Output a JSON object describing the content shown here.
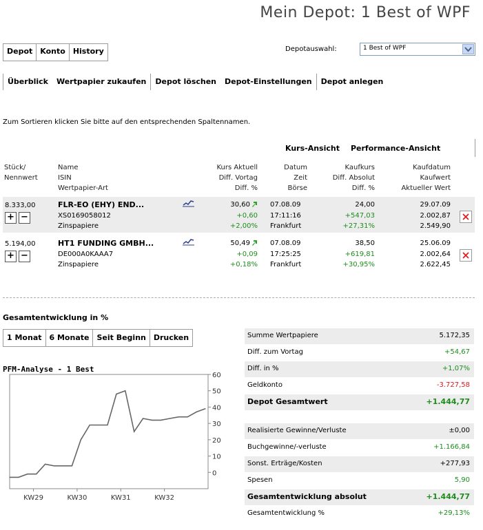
{
  "page_title": "Mein Depot: 1 Best of WPF",
  "tabs": [
    "Depot",
    "Konto",
    "History"
  ],
  "depot_select": {
    "label": "Depotauswahl:",
    "value": "1 Best of WPF"
  },
  "subnav": [
    "Überblick",
    "Wertpapier zukaufen",
    "Depot löschen",
    "Depot-Einstellungen",
    "Depot anlegen"
  ],
  "sort_hint": "Zum Sortieren klicken Sie bitte auf den entsprechenden Spaltennamen.",
  "view_links": [
    "Kurs-Ansicht",
    "Performance-Ansicht"
  ],
  "table": {
    "headers": {
      "stueck": [
        "Stück/",
        "Nennwert"
      ],
      "name": [
        "Name",
        "ISIN",
        "Wertpapier-Art"
      ],
      "kurs": [
        "Kurs Aktuell",
        "Diff. Vortag",
        "Diff. %"
      ],
      "datum": [
        "Datum",
        "Zeit",
        "Börse"
      ],
      "kaufkurs": [
        "Kaufkurs",
        "Diff. Absolut",
        "Diff. %"
      ],
      "kaufdatum": [
        "Kaufdatum",
        "Kaufwert",
        "Aktueller Wert"
      ]
    },
    "rows": [
      {
        "qty": "8.333,00",
        "name": "FLR-EO (EHY) END...",
        "isin": "XS0169058012",
        "type": "Zinspapiere",
        "kurs": "30,60",
        "diff_vortag": "+0,60",
        "diff_pct": "+2,00%",
        "datum": "07.08.09",
        "zeit": "17:11:16",
        "boerse": "Frankfurt",
        "kaufkurs": "24,00",
        "diff_abs": "+547,03",
        "diff_pct2": "+27,31%",
        "kaufdatum": "29.07.09",
        "kaufwert": "2.002,87",
        "aktueller_wert": "2.549,90"
      },
      {
        "qty": "5.194,00",
        "name": "HT1 FUNDING GMBH...",
        "isin": "DE000A0KAAA7",
        "type": "Zinspapiere",
        "kurs": "50,49",
        "diff_vortag": "+0,09",
        "diff_pct": "+0,18%",
        "datum": "07.08.09",
        "zeit": "17:25:25",
        "boerse": "Frankfurt",
        "kaufkurs": "38,50",
        "diff_abs": "+619,81",
        "diff_pct2": "+30,95%",
        "kaufdatum": "25.06.09",
        "kaufwert": "2.002,64",
        "aktueller_wert": "2.622,45"
      }
    ]
  },
  "gesamt_label": "Gesamtentwicklung in %",
  "period_tabs": [
    "1 Monat",
    "6 Monate",
    "Seit Beginn",
    "Drucken"
  ],
  "chart_title": "PFM-Analyse - 1 Best",
  "chart_data": {
    "type": "line",
    "title": "PFM-Analyse - 1 Best",
    "ylim": [
      -10,
      60
    ],
    "yticks": [
      0,
      10,
      20,
      30,
      40,
      50,
      60
    ],
    "xticks": [
      "KW29",
      "KW30",
      "KW31",
      "KW32"
    ],
    "grid": false,
    "x": [
      0,
      1,
      2,
      3,
      4,
      5,
      6,
      7,
      8,
      9,
      10,
      11,
      12,
      13,
      14,
      15,
      16,
      17,
      18,
      19,
      20,
      21,
      22
    ],
    "series": [
      {
        "values": [
          -3,
          -3,
          -1,
          -1,
          5,
          4,
          4,
          4,
          20,
          29,
          29,
          29,
          48,
          50,
          25,
          33,
          32,
          32,
          33,
          34,
          34,
          37,
          39
        ]
      }
    ],
    "line_color": "#666666"
  },
  "summary_top": [
    {
      "label": "Summe Wertpapiere",
      "value": "5.172,35",
      "style": "normal"
    },
    {
      "label": "Diff. zum Vortag",
      "value": "+54,67",
      "style": "green"
    },
    {
      "label": "Diff. in %",
      "value": "+1,07%",
      "style": "green"
    },
    {
      "label": "Geldkonto",
      "value": "-3.727,58",
      "style": "red"
    },
    {
      "label": "Depot Gesamtwert",
      "value": "+1.444,77",
      "style": "boldgreen"
    }
  ],
  "summary_bottom": [
    {
      "label": "Realisierte Gewinne/Verluste",
      "value": "±0,00",
      "style": "normal"
    },
    {
      "label": "Buchgewinne/-verluste",
      "value": "+1.166,84",
      "style": "green"
    },
    {
      "label": "Sonst. Erträge/Kosten",
      "value": "+277,93",
      "style": "normal"
    },
    {
      "label": "Spesen",
      "value": "5,90",
      "style": "green"
    },
    {
      "label": "Gesamtentwicklung absolut",
      "value": "+1.444,77",
      "style": "boldgreen"
    },
    {
      "label": "Gesamtentwicklung %",
      "value": "+29,13%",
      "style": "green"
    }
  ],
  "colors": {
    "green": "#1d8c1d",
    "red": "#e0161b",
    "row_bg": "#ececec"
  }
}
